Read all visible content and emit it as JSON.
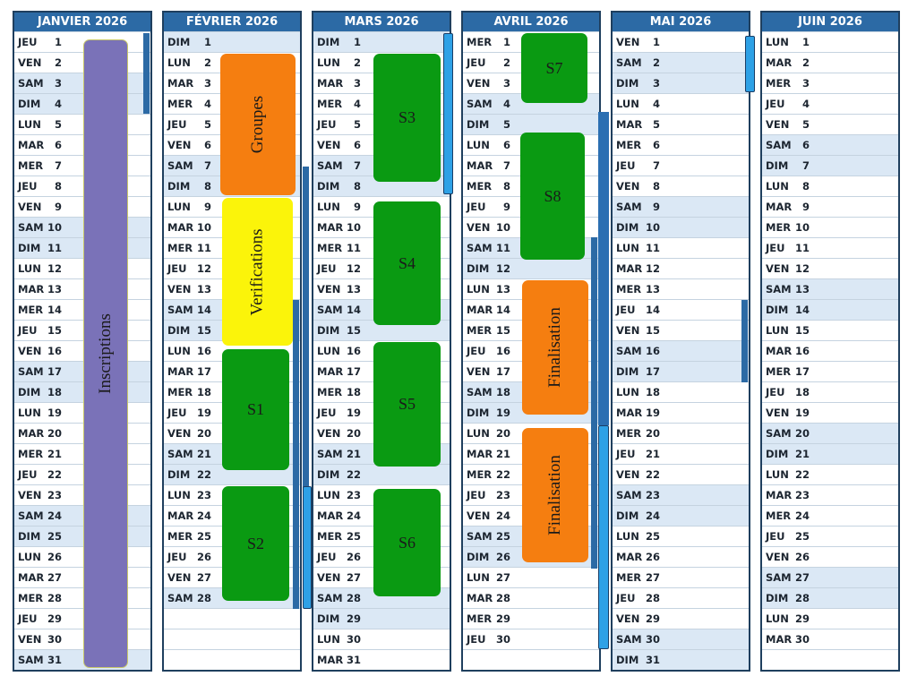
{
  "months": [
    {
      "title": "JANVIER 2026",
      "days": [
        {
          "d": "JEU",
          "n": "1"
        },
        {
          "d": "VEN",
          "n": "2"
        },
        {
          "d": "SAM",
          "n": "3"
        },
        {
          "d": "DIM",
          "n": "4"
        },
        {
          "d": "LUN",
          "n": "5"
        },
        {
          "d": "MAR",
          "n": "6"
        },
        {
          "d": "MER",
          "n": "7"
        },
        {
          "d": "JEU",
          "n": "8"
        },
        {
          "d": "VEN",
          "n": "9"
        },
        {
          "d": "SAM",
          "n": "10"
        },
        {
          "d": "DIM",
          "n": "11"
        },
        {
          "d": "LUN",
          "n": "12"
        },
        {
          "d": "MAR",
          "n": "13"
        },
        {
          "d": "MER",
          "n": "14"
        },
        {
          "d": "JEU",
          "n": "15"
        },
        {
          "d": "VEN",
          "n": "16"
        },
        {
          "d": "SAM",
          "n": "17"
        },
        {
          "d": "DIM",
          "n": "18"
        },
        {
          "d": "LUN",
          "n": "19"
        },
        {
          "d": "MAR",
          "n": "20"
        },
        {
          "d": "MER",
          "n": "21"
        },
        {
          "d": "JEU",
          "n": "22"
        },
        {
          "d": "VEN",
          "n": "23"
        },
        {
          "d": "SAM",
          "n": "24"
        },
        {
          "d": "DIM",
          "n": "25"
        },
        {
          "d": "LUN",
          "n": "26"
        },
        {
          "d": "MAR",
          "n": "27"
        },
        {
          "d": "MER",
          "n": "28"
        },
        {
          "d": "JEU",
          "n": "29"
        },
        {
          "d": "VEN",
          "n": "30"
        },
        {
          "d": "SAM",
          "n": "31"
        }
      ]
    },
    {
      "title": "FÉVRIER 2026",
      "days": [
        {
          "d": "DIM",
          "n": "1"
        },
        {
          "d": "LUN",
          "n": "2"
        },
        {
          "d": "MAR",
          "n": "3"
        },
        {
          "d": "MER",
          "n": "4"
        },
        {
          "d": "JEU",
          "n": "5"
        },
        {
          "d": "VEN",
          "n": "6"
        },
        {
          "d": "SAM",
          "n": "7"
        },
        {
          "d": "DIM",
          "n": "8"
        },
        {
          "d": "LUN",
          "n": "9"
        },
        {
          "d": "MAR",
          "n": "10"
        },
        {
          "d": "MER",
          "n": "11"
        },
        {
          "d": "JEU",
          "n": "12"
        },
        {
          "d": "VEN",
          "n": "13"
        },
        {
          "d": "SAM",
          "n": "14"
        },
        {
          "d": "DIM",
          "n": "15"
        },
        {
          "d": "LUN",
          "n": "16"
        },
        {
          "d": "MAR",
          "n": "17"
        },
        {
          "d": "MER",
          "n": "18"
        },
        {
          "d": "JEU",
          "n": "19"
        },
        {
          "d": "VEN",
          "n": "20"
        },
        {
          "d": "SAM",
          "n": "21"
        },
        {
          "d": "DIM",
          "n": "22"
        },
        {
          "d": "LUN",
          "n": "23"
        },
        {
          "d": "MAR",
          "n": "24"
        },
        {
          "d": "MER",
          "n": "25"
        },
        {
          "d": "JEU",
          "n": "26"
        },
        {
          "d": "VEN",
          "n": "27"
        },
        {
          "d": "SAM",
          "n": "28"
        },
        {
          "d": "",
          "n": ""
        },
        {
          "d": "",
          "n": ""
        },
        {
          "d": "",
          "n": ""
        }
      ]
    },
    {
      "title": "MARS 2026",
      "days": [
        {
          "d": "DIM",
          "n": "1"
        },
        {
          "d": "LUN",
          "n": "2"
        },
        {
          "d": "MAR",
          "n": "3"
        },
        {
          "d": "MER",
          "n": "4"
        },
        {
          "d": "JEU",
          "n": "5"
        },
        {
          "d": "VEN",
          "n": "6"
        },
        {
          "d": "SAM",
          "n": "7"
        },
        {
          "d": "DIM",
          "n": "8"
        },
        {
          "d": "LUN",
          "n": "9"
        },
        {
          "d": "MAR",
          "n": "10"
        },
        {
          "d": "MER",
          "n": "11"
        },
        {
          "d": "JEU",
          "n": "12"
        },
        {
          "d": "VEN",
          "n": "13"
        },
        {
          "d": "SAM",
          "n": "14"
        },
        {
          "d": "DIM",
          "n": "15"
        },
        {
          "d": "LUN",
          "n": "16"
        },
        {
          "d": "MAR",
          "n": "17"
        },
        {
          "d": "MER",
          "n": "18"
        },
        {
          "d": "JEU",
          "n": "19"
        },
        {
          "d": "VEN",
          "n": "20"
        },
        {
          "d": "SAM",
          "n": "21"
        },
        {
          "d": "DIM",
          "n": "22"
        },
        {
          "d": "LUN",
          "n": "23"
        },
        {
          "d": "MAR",
          "n": "24"
        },
        {
          "d": "MER",
          "n": "25"
        },
        {
          "d": "JEU",
          "n": "26"
        },
        {
          "d": "VEN",
          "n": "27"
        },
        {
          "d": "SAM",
          "n": "28"
        },
        {
          "d": "DIM",
          "n": "29"
        },
        {
          "d": "LUN",
          "n": "30"
        },
        {
          "d": "MAR",
          "n": "31"
        }
      ]
    },
    {
      "title": "AVRIL 2026",
      "days": [
        {
          "d": "MER",
          "n": "1"
        },
        {
          "d": "JEU",
          "n": "2"
        },
        {
          "d": "VEN",
          "n": "3"
        },
        {
          "d": "SAM",
          "n": "4"
        },
        {
          "d": "DIM",
          "n": "5"
        },
        {
          "d": "LUN",
          "n": "6"
        },
        {
          "d": "MAR",
          "n": "7"
        },
        {
          "d": "MER",
          "n": "8"
        },
        {
          "d": "JEU",
          "n": "9"
        },
        {
          "d": "VEN",
          "n": "10"
        },
        {
          "d": "SAM",
          "n": "11"
        },
        {
          "d": "DIM",
          "n": "12"
        },
        {
          "d": "LUN",
          "n": "13"
        },
        {
          "d": "MAR",
          "n": "14"
        },
        {
          "d": "MER",
          "n": "15"
        },
        {
          "d": "JEU",
          "n": "16"
        },
        {
          "d": "VEN",
          "n": "17"
        },
        {
          "d": "SAM",
          "n": "18"
        },
        {
          "d": "DIM",
          "n": "19"
        },
        {
          "d": "LUN",
          "n": "20"
        },
        {
          "d": "MAR",
          "n": "21"
        },
        {
          "d": "MER",
          "n": "22"
        },
        {
          "d": "JEU",
          "n": "23"
        },
        {
          "d": "VEN",
          "n": "24"
        },
        {
          "d": "SAM",
          "n": "25"
        },
        {
          "d": "DIM",
          "n": "26"
        },
        {
          "d": "LUN",
          "n": "27"
        },
        {
          "d": "MAR",
          "n": "28"
        },
        {
          "d": "MER",
          "n": "29"
        },
        {
          "d": "JEU",
          "n": "30"
        },
        {
          "d": "",
          "n": ""
        }
      ]
    },
    {
      "title": "MAI 2026",
      "days": [
        {
          "d": "VEN",
          "n": "1"
        },
        {
          "d": "SAM",
          "n": "2"
        },
        {
          "d": "DIM",
          "n": "3"
        },
        {
          "d": "LUN",
          "n": "4"
        },
        {
          "d": "MAR",
          "n": "5"
        },
        {
          "d": "MER",
          "n": "6"
        },
        {
          "d": "JEU",
          "n": "7"
        },
        {
          "d": "VEN",
          "n": "8"
        },
        {
          "d": "SAM",
          "n": "9"
        },
        {
          "d": "DIM",
          "n": "10"
        },
        {
          "d": "LUN",
          "n": "11"
        },
        {
          "d": "MAR",
          "n": "12"
        },
        {
          "d": "MER",
          "n": "13"
        },
        {
          "d": "JEU",
          "n": "14"
        },
        {
          "d": "VEN",
          "n": "15"
        },
        {
          "d": "SAM",
          "n": "16"
        },
        {
          "d": "DIM",
          "n": "17"
        },
        {
          "d": "LUN",
          "n": "18"
        },
        {
          "d": "MAR",
          "n": "19"
        },
        {
          "d": "MER",
          "n": "20"
        },
        {
          "d": "JEU",
          "n": "21"
        },
        {
          "d": "VEN",
          "n": "22"
        },
        {
          "d": "SAM",
          "n": "23"
        },
        {
          "d": "DIM",
          "n": "24"
        },
        {
          "d": "LUN",
          "n": "25"
        },
        {
          "d": "MAR",
          "n": "26"
        },
        {
          "d": "MER",
          "n": "27"
        },
        {
          "d": "JEU",
          "n": "28"
        },
        {
          "d": "VEN",
          "n": "29"
        },
        {
          "d": "SAM",
          "n": "30"
        },
        {
          "d": "DIM",
          "n": "31"
        }
      ]
    },
    {
      "title": "JUIN 2026",
      "days": [
        {
          "d": "LUN",
          "n": "1"
        },
        {
          "d": "MAR",
          "n": "2"
        },
        {
          "d": "MER",
          "n": "3"
        },
        {
          "d": "JEU",
          "n": "4"
        },
        {
          "d": "VEN",
          "n": "5"
        },
        {
          "d": "SAM",
          "n": "6"
        },
        {
          "d": "DIM",
          "n": "7"
        },
        {
          "d": "LUN",
          "n": "8"
        },
        {
          "d": "MAR",
          "n": "9"
        },
        {
          "d": "MER",
          "n": "10"
        },
        {
          "d": "JEU",
          "n": "11"
        },
        {
          "d": "VEN",
          "n": "12"
        },
        {
          "d": "SAM",
          "n": "13"
        },
        {
          "d": "DIM",
          "n": "14"
        },
        {
          "d": "LUN",
          "n": "15"
        },
        {
          "d": "MAR",
          "n": "16"
        },
        {
          "d": "MER",
          "n": "17"
        },
        {
          "d": "JEU",
          "n": "18"
        },
        {
          "d": "VEN",
          "n": "19"
        },
        {
          "d": "SAM",
          "n": "20"
        },
        {
          "d": "DIM",
          "n": "21"
        },
        {
          "d": "LUN",
          "n": "22"
        },
        {
          "d": "MAR",
          "n": "23"
        },
        {
          "d": "MER",
          "n": "24"
        },
        {
          "d": "JEU",
          "n": "25"
        },
        {
          "d": "VEN",
          "n": "26"
        },
        {
          "d": "SAM",
          "n": "27"
        },
        {
          "d": "DIM",
          "n": "28"
        },
        {
          "d": "LUN",
          "n": "29"
        },
        {
          "d": "MAR",
          "n": "30"
        },
        {
          "d": "",
          "n": ""
        }
      ]
    }
  ],
  "events": {
    "inscriptions": "Inscriptions",
    "groupes": "Groupes",
    "verifications": "Verifications",
    "s1": "S1",
    "s2": "S2",
    "s3": "S3",
    "s4": "S4",
    "s5": "S5",
    "s6": "S6",
    "s7": "S7",
    "s8": "S8",
    "finalisation_1": "Finalisation",
    "finalisation_2": "Finalisation"
  },
  "colors": {
    "header": "#2c6aa5",
    "green": "#0a9a12",
    "orange": "#f57e10",
    "yellow": "#fbf40a",
    "purple": "#7a72b8",
    "weekend_row": "#dbe8f5"
  }
}
